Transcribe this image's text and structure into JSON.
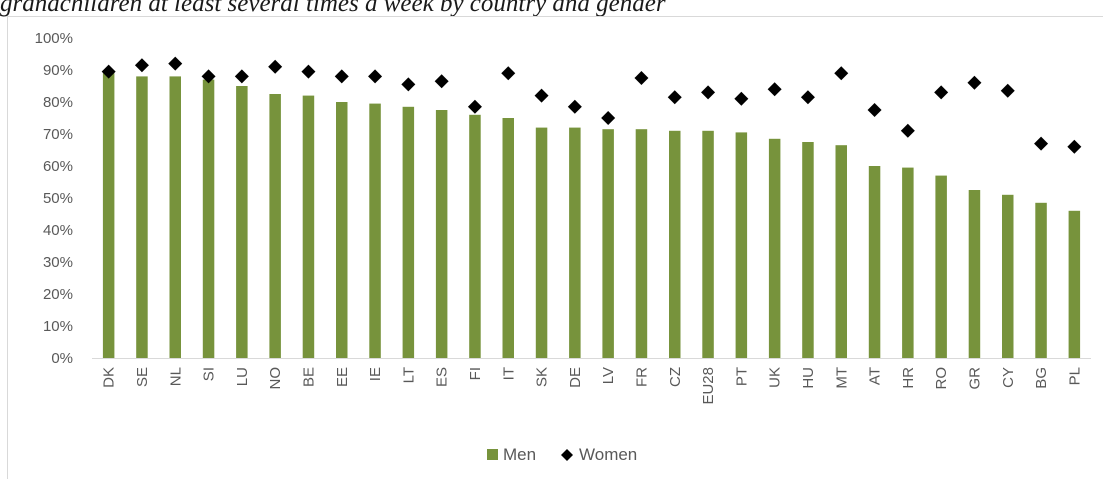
{
  "caption": "grandchildren at least several times a week by country and gender",
  "chart_data": {
    "type": "bar",
    "categories": [
      "DK",
      "SE",
      "NL",
      "SI",
      "LU",
      "NO",
      "BE",
      "EE",
      "IE",
      "LT",
      "ES",
      "FI",
      "IT",
      "SK",
      "DE",
      "LV",
      "FR",
      "CZ",
      "EU28",
      "PT",
      "UK",
      "HU",
      "MT",
      "AT",
      "HR",
      "RO",
      "GR",
      "CY",
      "BG",
      "PL"
    ],
    "series": [
      {
        "name": "Men",
        "kind": "bar",
        "color": "#77933c",
        "values": [
          89,
          88,
          88,
          87,
          85,
          82.5,
          82,
          80,
          79.5,
          78.5,
          77.5,
          76,
          75,
          72,
          72,
          71.5,
          71.5,
          71,
          71,
          70.5,
          68.5,
          67.5,
          66.5,
          60,
          59.5,
          57,
          52.5,
          51,
          48.5,
          46
        ]
      },
      {
        "name": "Women",
        "kind": "marker",
        "color": "#000000",
        "values": [
          89.5,
          91.5,
          92,
          88,
          88,
          91,
          89.5,
          88,
          88,
          85.5,
          86.5,
          78.5,
          89,
          82,
          78.5,
          75,
          87.5,
          81.5,
          83,
          81,
          84,
          81.5,
          89,
          77.5,
          71,
          83,
          86,
          83.5,
          67,
          66
        ]
      }
    ],
    "ylim": [
      0,
      100
    ],
    "yticks": [
      "0%",
      "10%",
      "20%",
      "30%",
      "40%",
      "50%",
      "60%",
      "70%",
      "80%",
      "90%",
      "100%"
    ],
    "grid": false,
    "legend": "bottom-center"
  }
}
